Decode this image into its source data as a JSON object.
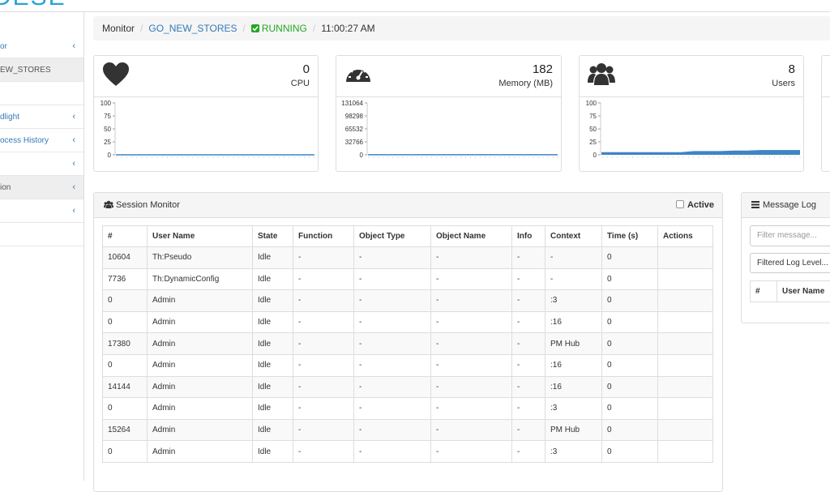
{
  "logo": "DESE",
  "sidebar": {
    "items": [
      "or",
      "EW_STORES",
      "dlight",
      "ocess History",
      "ion"
    ]
  },
  "breadcrumb": {
    "items": [
      "Monitor",
      "GO_NEW_STORES"
    ],
    "status": "RUNNING",
    "time": "11:00:27 AM"
  },
  "widgets": [
    {
      "value": 0,
      "label": "CPU",
      "ylim": [
        0,
        100
      ],
      "yticks": [
        0,
        25,
        50,
        75,
        100
      ],
      "values": [
        0,
        0,
        0,
        0,
        0,
        0,
        0,
        0,
        0,
        0,
        0,
        0,
        0,
        0,
        0,
        0
      ]
    },
    {
      "value": 182,
      "label": "Memory (MB)",
      "ylim": [
        0,
        131064
      ],
      "yticks": [
        0,
        32766,
        65532,
        98298,
        131064
      ],
      "values": [
        182,
        182,
        182,
        182,
        182,
        182,
        182,
        182,
        182,
        182,
        182,
        182,
        182,
        182,
        182,
        182
      ]
    },
    {
      "value": 8,
      "label": "Users",
      "ylim": [
        0,
        100
      ],
      "yticks": [
        0,
        25,
        50,
        75,
        100
      ],
      "values": [
        4,
        4,
        4,
        4,
        4,
        4,
        4,
        6,
        6,
        6,
        7,
        7,
        8,
        8,
        8,
        8
      ]
    }
  ],
  "session_monitor": {
    "title": "Session Monitor",
    "active": "Active",
    "columns": [
      "#",
      "User Name",
      "State",
      "Function",
      "Object Type",
      "Object Name",
      "Info",
      "Context",
      "Time (s)",
      "Actions"
    ],
    "rows": [
      [
        "10604",
        "Th:Pseudo",
        "Idle",
        "-",
        "-",
        "-",
        "-",
        "-",
        "0",
        null
      ],
      [
        "7736",
        "Th:DynamicConfig",
        "Idle",
        "-",
        "-",
        "-",
        "-",
        "-",
        "0",
        null
      ],
      [
        "0",
        "Admin",
        "Idle",
        "-",
        "-",
        "-",
        "-",
        ":3",
        "0",
        null
      ],
      [
        "0",
        "Admin",
        "Idle",
        "-",
        "-",
        "-",
        "-",
        ":16",
        "0",
        null
      ],
      [
        "17380",
        "Admin",
        "Idle",
        "-",
        "-",
        "-",
        "-",
        "PM Hub",
        "0",
        null
      ],
      [
        "0",
        "Admin",
        "Idle",
        "-",
        "-",
        "-",
        "-",
        ":16",
        "0",
        null
      ],
      [
        "14144",
        "Admin",
        "Idle",
        "-",
        "-",
        "-",
        "-",
        ":16",
        "0",
        null
      ],
      [
        "0",
        "Admin",
        "Idle",
        "-",
        "-",
        "-",
        "-",
        ":3",
        "0",
        null
      ],
      [
        "15264",
        "Admin",
        "Idle",
        "-",
        "-",
        "-",
        "-",
        "PM Hub",
        "0",
        null
      ],
      [
        "0",
        "Admin",
        "Idle",
        "-",
        "-",
        "-",
        "-",
        ":3",
        "0",
        null
      ]
    ]
  },
  "message_log": {
    "title": "Message Log",
    "filter_placeholder": "Filter message...",
    "level_button": "Filtered Log Level...",
    "columns": [
      "#",
      "User Name"
    ]
  }
}
